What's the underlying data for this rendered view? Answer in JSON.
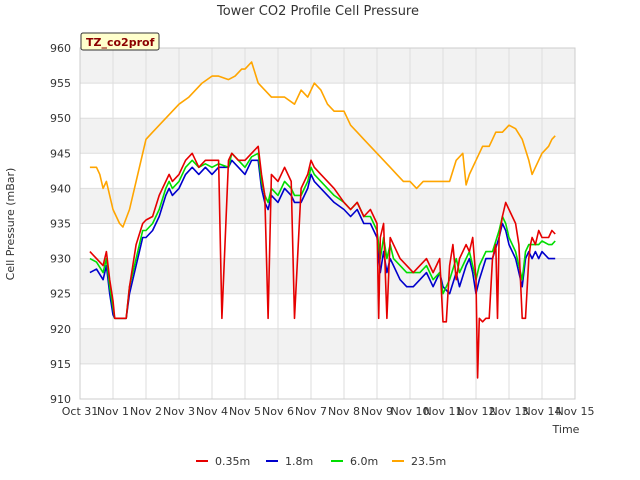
{
  "chart_data": {
    "type": "line",
    "title": "Tower CO2 Profile Cell Pressure",
    "badge": "TZ_co2prof",
    "xlabel": "Time",
    "ylabel": "Cell Pressure (mBar)",
    "ylim": [
      910,
      960
    ],
    "xlim": [
      0,
      15
    ],
    "yticks": [
      910,
      915,
      920,
      925,
      930,
      935,
      940,
      945,
      950,
      955,
      960
    ],
    "xticks": [
      {
        "v": 0,
        "label": "Oct 31"
      },
      {
        "v": 1,
        "label": "Nov 1"
      },
      {
        "v": 2,
        "label": "Nov 2"
      },
      {
        "v": 3,
        "label": "Nov 3"
      },
      {
        "v": 4,
        "label": "Nov 4"
      },
      {
        "v": 5,
        "label": "Nov 5"
      },
      {
        "v": 6,
        "label": "Nov 6"
      },
      {
        "v": 7,
        "label": "Nov 7"
      },
      {
        "v": 8,
        "label": "Nov 8"
      },
      {
        "v": 9,
        "label": "Nov 9"
      },
      {
        "v": 10,
        "label": "Nov 10"
      },
      {
        "v": 11,
        "label": "Nov 11"
      },
      {
        "v": 12,
        "label": "Nov 12"
      },
      {
        "v": 13,
        "label": "Nov 13"
      },
      {
        "v": 14,
        "label": "Nov 14"
      },
      {
        "v": 15,
        "label": "Nov 15"
      }
    ],
    "grid": true,
    "legend_position": "bottom",
    "series": [
      {
        "name": "0.35m",
        "color": "#e60000",
        "x": [
          0.3,
          0.5,
          0.7,
          0.8,
          0.9,
          1.0,
          1.05,
          1.2,
          1.4,
          1.5,
          1.7,
          1.9,
          2.0,
          2.2,
          2.4,
          2.6,
          2.7,
          2.8,
          3.0,
          3.2,
          3.4,
          3.6,
          3.8,
          4.0,
          4.2,
          4.3,
          4.5,
          4.6,
          4.8,
          5.0,
          5.2,
          5.4,
          5.5,
          5.6,
          5.7,
          5.8,
          6.0,
          6.2,
          6.4,
          6.5,
          6.7,
          6.8,
          6.9,
          7.0,
          7.1,
          7.3,
          7.5,
          7.7,
          8.0,
          8.2,
          8.4,
          8.6,
          8.8,
          9.0,
          9.05,
          9.1,
          9.2,
          9.3,
          9.4,
          9.5,
          9.7,
          9.9,
          10.1,
          10.3,
          10.5,
          10.7,
          10.9,
          11.0,
          11.1,
          11.2,
          11.3,
          11.4,
          11.5,
          11.7,
          11.8,
          11.9,
          12.0,
          12.05,
          12.1,
          12.2,
          12.3,
          12.4,
          12.5,
          12.6,
          12.65,
          12.7,
          12.8,
          12.9,
          13.0,
          13.2,
          13.3,
          13.4,
          13.5,
          13.6,
          13.65,
          13.7,
          13.8,
          13.9,
          14.0,
          14.2,
          14.3,
          14.4
        ],
        "y": [
          931,
          930,
          929,
          931,
          927,
          924,
          921.5,
          921.5,
          921.5,
          926,
          932,
          935,
          935.5,
          936,
          939,
          941,
          942,
          941,
          942,
          944,
          945,
          943,
          944,
          944,
          944,
          921.5,
          944,
          945,
          944,
          944,
          945,
          946,
          942,
          939,
          921.5,
          942,
          941,
          943,
          941,
          921.5,
          940,
          941,
          942,
          944,
          943,
          942,
          941,
          940,
          938,
          937,
          938,
          936,
          937,
          935,
          921.5,
          933,
          935,
          921.5,
          933,
          932,
          930,
          929,
          928,
          929,
          930,
          928,
          930,
          921,
          921,
          929,
          932,
          927,
          930,
          932,
          931,
          933,
          927,
          913,
          921.5,
          921,
          921.5,
          921.5,
          930,
          932,
          921.5,
          933,
          936,
          938,
          937,
          935,
          932,
          921.5,
          921.5,
          930,
          932,
          933,
          932,
          934,
          933,
          933,
          934,
          933.5
        ]
      },
      {
        "name": "1.8m",
        "color": "#0000cc",
        "x": [
          0.3,
          0.5,
          0.7,
          0.8,
          0.9,
          1.0,
          1.05,
          1.2,
          1.4,
          1.5,
          1.7,
          1.9,
          2.0,
          2.2,
          2.4,
          2.6,
          2.7,
          2.8,
          3.0,
          3.2,
          3.4,
          3.6,
          3.8,
          4.0,
          4.2,
          4.5,
          4.6,
          4.8,
          5.0,
          5.2,
          5.4,
          5.5,
          5.6,
          5.7,
          5.8,
          6.0,
          6.2,
          6.4,
          6.5,
          6.7,
          6.8,
          6.9,
          7.0,
          7.1,
          7.3,
          7.5,
          7.7,
          8.0,
          8.2,
          8.4,
          8.6,
          8.8,
          9.0,
          9.1,
          9.2,
          9.3,
          9.4,
          9.5,
          9.7,
          9.9,
          10.1,
          10.3,
          10.5,
          10.7,
          10.9,
          11.0,
          11.2,
          11.4,
          11.5,
          11.7,
          11.8,
          11.9,
          12.0,
          12.1,
          12.3,
          12.5,
          12.7,
          12.8,
          12.9,
          13.0,
          13.2,
          13.4,
          13.5,
          13.6,
          13.7,
          13.8,
          13.9,
          14.0,
          14.2,
          14.3,
          14.4
        ],
        "y": [
          928,
          928.5,
          927,
          929,
          925,
          922,
          921.5,
          921.5,
          921.5,
          925,
          929,
          933,
          933,
          934,
          936,
          939,
          940,
          939,
          940,
          942,
          943,
          942,
          943,
          942,
          943,
          943,
          944,
          943,
          942,
          944,
          944,
          940,
          938,
          937,
          939,
          938,
          940,
          939,
          938,
          938,
          939,
          940,
          942,
          941,
          940,
          939,
          938,
          937,
          936,
          937,
          935,
          935,
          933,
          928,
          931,
          928,
          930,
          929,
          927,
          926,
          926,
          927,
          928,
          926,
          928,
          926,
          925,
          928,
          926,
          929,
          930,
          928,
          925,
          927,
          930,
          930,
          933,
          935,
          934,
          932,
          930,
          926,
          930,
          931,
          930,
          931,
          930,
          931,
          930,
          930,
          930
        ]
      },
      {
        "name": "6.0m",
        "color": "#00dd00",
        "x": [
          0.3,
          0.5,
          0.7,
          0.8,
          0.9,
          1.0,
          1.05,
          1.2,
          1.4,
          1.5,
          1.7,
          1.9,
          2.0,
          2.2,
          2.4,
          2.6,
          2.7,
          2.8,
          3.0,
          3.2,
          3.4,
          3.6,
          3.8,
          4.0,
          4.2,
          4.5,
          4.6,
          4.8,
          5.0,
          5.2,
          5.4,
          5.5,
          5.6,
          5.7,
          5.8,
          6.0,
          6.2,
          6.4,
          6.5,
          6.7,
          6.8,
          6.9,
          7.0,
          7.1,
          7.3,
          7.5,
          7.7,
          8.0,
          8.2,
          8.4,
          8.6,
          8.8,
          9.0,
          9.1,
          9.2,
          9.3,
          9.4,
          9.5,
          9.7,
          9.9,
          10.1,
          10.3,
          10.5,
          10.7,
          10.9,
          11.0,
          11.2,
          11.4,
          11.5,
          11.7,
          11.8,
          11.9,
          12.0,
          12.1,
          12.3,
          12.5,
          12.7,
          12.8,
          12.9,
          13.0,
          13.2,
          13.4,
          13.5,
          13.6,
          13.7,
          13.8,
          13.9,
          14.0,
          14.2,
          14.3,
          14.4
        ],
        "y": [
          930,
          929.5,
          928,
          930,
          926,
          923,
          921.5,
          921.5,
          921.5,
          926,
          930,
          934,
          934,
          935,
          937,
          940,
          941,
          940,
          941,
          943,
          944,
          943,
          943.5,
          943,
          943.5,
          943,
          945,
          944,
          943,
          944.5,
          945,
          941,
          939,
          938,
          940,
          939,
          941,
          940,
          939,
          939,
          940,
          941,
          943,
          942,
          941,
          940,
          939,
          938,
          937,
          938,
          936,
          936,
          934,
          930,
          933,
          930,
          932,
          930,
          929,
          928,
          928,
          928,
          929,
          927,
          928,
          925,
          927,
          930,
          928,
          930,
          931,
          929,
          927,
          929,
          931,
          931,
          934,
          936,
          935,
          933,
          931,
          927,
          931,
          932,
          932,
          932,
          932,
          932.5,
          932,
          932,
          932.5
        ]
      },
      {
        "name": "23.5m",
        "color": "#ffa500",
        "x": [
          0.3,
          0.5,
          0.6,
          0.7,
          0.8,
          1.0,
          1.2,
          1.3,
          1.5,
          1.7,
          1.9,
          2.0,
          2.2,
          2.4,
          2.6,
          2.8,
          3.0,
          3.3,
          3.5,
          3.7,
          4.0,
          4.2,
          4.5,
          4.7,
          4.9,
          5.0,
          5.2,
          5.4,
          5.6,
          5.8,
          6.0,
          6.2,
          6.5,
          6.7,
          6.9,
          7.1,
          7.3,
          7.5,
          7.7,
          8.0,
          8.2,
          8.4,
          8.6,
          8.8,
          9.0,
          9.2,
          9.4,
          9.6,
          9.8,
          10.0,
          10.2,
          10.4,
          10.6,
          10.8,
          11.0,
          11.2,
          11.4,
          11.6,
          11.7,
          11.8,
          12.0,
          12.2,
          12.4,
          12.5,
          12.6,
          12.8,
          13.0,
          13.2,
          13.4,
          13.6,
          13.7,
          13.8,
          14.0,
          14.2,
          14.3,
          14.4
        ],
        "y": [
          943,
          943,
          942,
          940,
          941,
          937,
          935,
          934.5,
          937,
          941,
          945,
          947,
          948,
          949,
          950,
          951,
          952,
          953,
          954,
          955,
          956,
          956,
          955.5,
          956,
          957,
          957,
          958,
          955,
          954,
          953,
          953,
          953,
          952,
          954,
          953,
          955,
          954,
          952,
          951,
          951,
          949,
          948,
          947,
          946,
          945,
          944,
          943,
          942,
          941,
          941,
          940,
          941,
          941,
          941,
          941,
          941,
          944,
          945,
          940.5,
          942,
          944,
          946,
          946,
          947,
          948,
          948,
          949,
          948.5,
          947,
          944,
          942,
          943,
          945,
          946,
          947,
          947.5
        ]
      }
    ]
  }
}
